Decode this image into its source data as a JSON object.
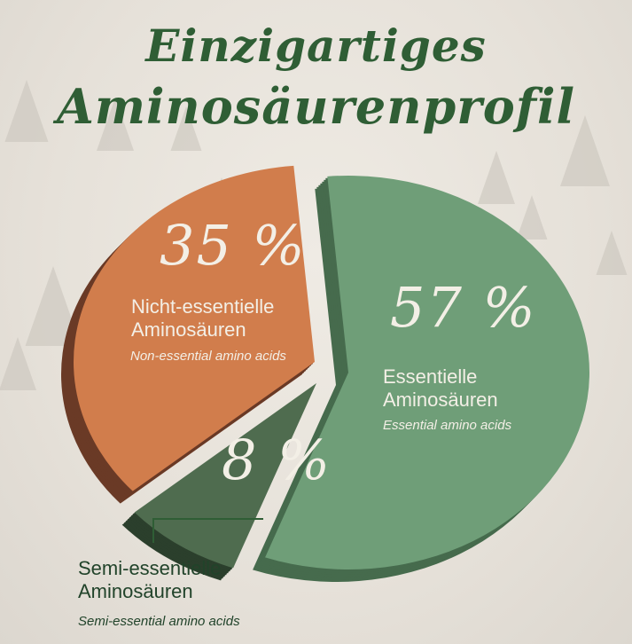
{
  "title": {
    "line1": "Einzigartiges",
    "line2": "Aminosäurenprofil"
  },
  "colors": {
    "essential": "#6f9e78",
    "semi": "#4f6c4f",
    "non_essential": "#d17d4c",
    "title": "#2f5e35"
  },
  "chart_data": {
    "type": "pie",
    "title": "Einzigartiges Aminosäurenprofil",
    "slices": [
      {
        "key": "essential",
        "value": 57,
        "label_pct": "57 %",
        "label_de_1": "Essentielle",
        "label_de_2": "Aminosäuren",
        "label_en": "Essential amino acids"
      },
      {
        "key": "semi",
        "value": 8,
        "label_pct": "8 %",
        "label_de_1": "Semi-essentielle",
        "label_de_2": "Aminosäuren",
        "label_en": "Semi-essential amino acids"
      },
      {
        "key": "non_essential",
        "value": 35,
        "label_pct": "35 %",
        "label_de_1": "Nicht-essentielle",
        "label_de_2": "Aminosäuren",
        "label_en": "Non-essential amino acids"
      }
    ]
  }
}
